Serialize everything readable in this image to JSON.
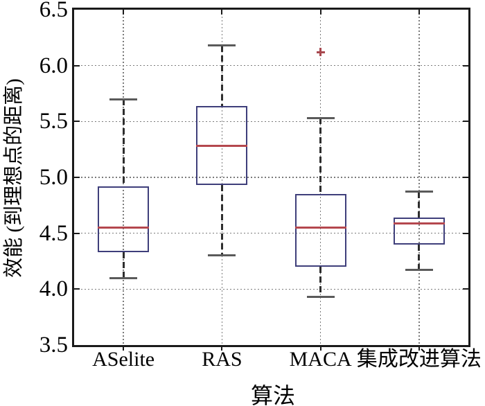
{
  "figure": {
    "background": "#ffffff"
  },
  "chart_data": {
    "type": "boxplot",
    "title": "",
    "xlabel": "算法",
    "ylabel": "效能 (到理想点的距离)",
    "ylim": [
      3.5,
      6.5
    ],
    "yticks": [
      3.5,
      4.0,
      4.5,
      5.0,
      5.5,
      6.0,
      6.5
    ],
    "grid": true,
    "categories": [
      "ASelite",
      "RAS",
      "MACA",
      "集成改进算法"
    ],
    "boxes": [
      {
        "label": "ASelite",
        "whisker_low": 4.1,
        "q1": 4.33,
        "median": 4.55,
        "q3": 4.92,
        "whisker_high": 5.7,
        "outliers": []
      },
      {
        "label": "RAS",
        "whisker_low": 4.3,
        "q1": 4.93,
        "median": 5.28,
        "q3": 5.64,
        "whisker_high": 6.18,
        "outliers": []
      },
      {
        "label": "MACA",
        "whisker_low": 3.93,
        "q1": 4.2,
        "median": 4.55,
        "q3": 4.85,
        "whisker_high": 5.53,
        "outliers": [
          6.12
        ]
      },
      {
        "label": "集成改进算法",
        "whisker_low": 4.17,
        "q1": 4.4,
        "median": 4.59,
        "q3": 4.64,
        "whisker_high": 4.87,
        "outliers": []
      }
    ],
    "colors": {
      "box_edge": "#3e3e7a",
      "median": "#b4474e",
      "whisker": "#2e2e2e",
      "cap": "#5a5a5a",
      "outlier": "#a8484f",
      "grid": "#7a7a7a",
      "spine": "#1a1a1a"
    }
  }
}
